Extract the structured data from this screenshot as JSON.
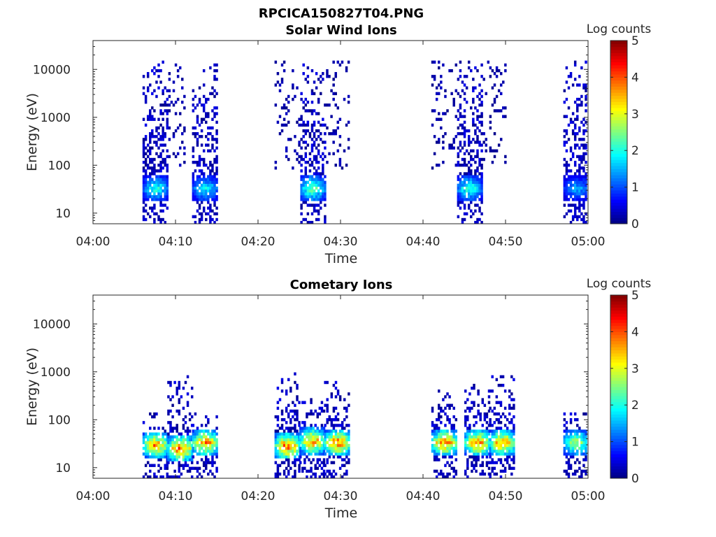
{
  "figure_title": "RPCICA150827T04.PNG",
  "colorbar": {
    "label": "Log counts",
    "ticks": [
      "0",
      "1",
      "2",
      "3",
      "4",
      "5"
    ],
    "colormap": "jet"
  },
  "chart_data": [
    {
      "type": "heatmap",
      "title": "Solar Wind Ions",
      "xlabel": "Time",
      "ylabel": "Energy (eV)",
      "xticks": [
        "04:00",
        "04:10",
        "04:20",
        "04:30",
        "04:40",
        "04:50",
        "05:00"
      ],
      "yticks": [
        "10",
        "100",
        "1000",
        "10000"
      ],
      "yscale": "log",
      "ylim": [
        6,
        40000
      ],
      "xlim": [
        "04:00",
        "05:00"
      ],
      "clim": [
        0,
        5
      ],
      "bursts": [
        {
          "start": "04:06",
          "end": "04:09",
          "sparse_to": "04:11",
          "peak_energy": 33,
          "peak_log_counts": 2.2,
          "top_energy": 15000
        },
        {
          "start": "04:12",
          "end": "04:15",
          "sparse_to": "04:15",
          "peak_energy": 33,
          "peak_log_counts": 2.0,
          "top_energy": 15000
        },
        {
          "start": "04:25",
          "end": "04:28",
          "sparse_from": "04:22",
          "sparse_to": "04:31",
          "peak_energy": 33,
          "peak_log_counts": 2.6,
          "top_energy": 15000
        },
        {
          "start": "04:44",
          "end": "04:47",
          "sparse_from": "04:41",
          "sparse_to": "04:50",
          "peak_energy": 33,
          "peak_log_counts": 2.3,
          "top_energy": 15000
        },
        {
          "start": "04:57",
          "end": "05:00",
          "peak_energy": 33,
          "peak_log_counts": 1.6,
          "top_energy": 15000
        }
      ]
    },
    {
      "type": "heatmap",
      "title": "Cometary Ions",
      "xlabel": "Time",
      "ylabel": "Energy (eV)",
      "xticks": [
        "04:00",
        "04:10",
        "04:20",
        "04:30",
        "04:40",
        "04:50",
        "05:00"
      ],
      "yticks": [
        "10",
        "100",
        "1000",
        "10000"
      ],
      "yscale": "log",
      "ylim": [
        6,
        40000
      ],
      "xlim": [
        "04:00",
        "05:00"
      ],
      "clim": [
        0,
        5
      ],
      "bursts": [
        {
          "start": "04:06",
          "end": "04:09",
          "peak_energy": 30,
          "peak_log_counts": 4.0,
          "top_energy": 150
        },
        {
          "start": "04:09",
          "end": "04:12",
          "peak_energy": 25,
          "peak_log_counts": 4.2,
          "top_energy": 800
        },
        {
          "start": "04:12",
          "end": "04:15",
          "peak_energy": 33,
          "peak_log_counts": 4.0,
          "top_energy": 150
        },
        {
          "start": "04:22",
          "end": "04:25",
          "peak_energy": 28,
          "peak_log_counts": 4.3,
          "top_energy": 1000
        },
        {
          "start": "04:25",
          "end": "04:28",
          "peak_energy": 35,
          "peak_log_counts": 4.0,
          "top_energy": 300
        },
        {
          "start": "04:28",
          "end": "04:31",
          "peak_energy": 33,
          "peak_log_counts": 4.2,
          "top_energy": 800
        },
        {
          "start": "04:41",
          "end": "04:44",
          "peak_energy": 33,
          "peak_log_counts": 4.1,
          "top_energy": 400
        },
        {
          "start": "04:45",
          "end": "04:48",
          "peak_energy": 33,
          "peak_log_counts": 4.1,
          "top_energy": 600
        },
        {
          "start": "04:48",
          "end": "04:51",
          "peak_energy": 33,
          "peak_log_counts": 4.0,
          "top_energy": 900
        },
        {
          "start": "04:57",
          "end": "05:00",
          "peak_energy": 33,
          "peak_log_counts": 3.0,
          "top_energy": 200
        }
      ]
    }
  ]
}
